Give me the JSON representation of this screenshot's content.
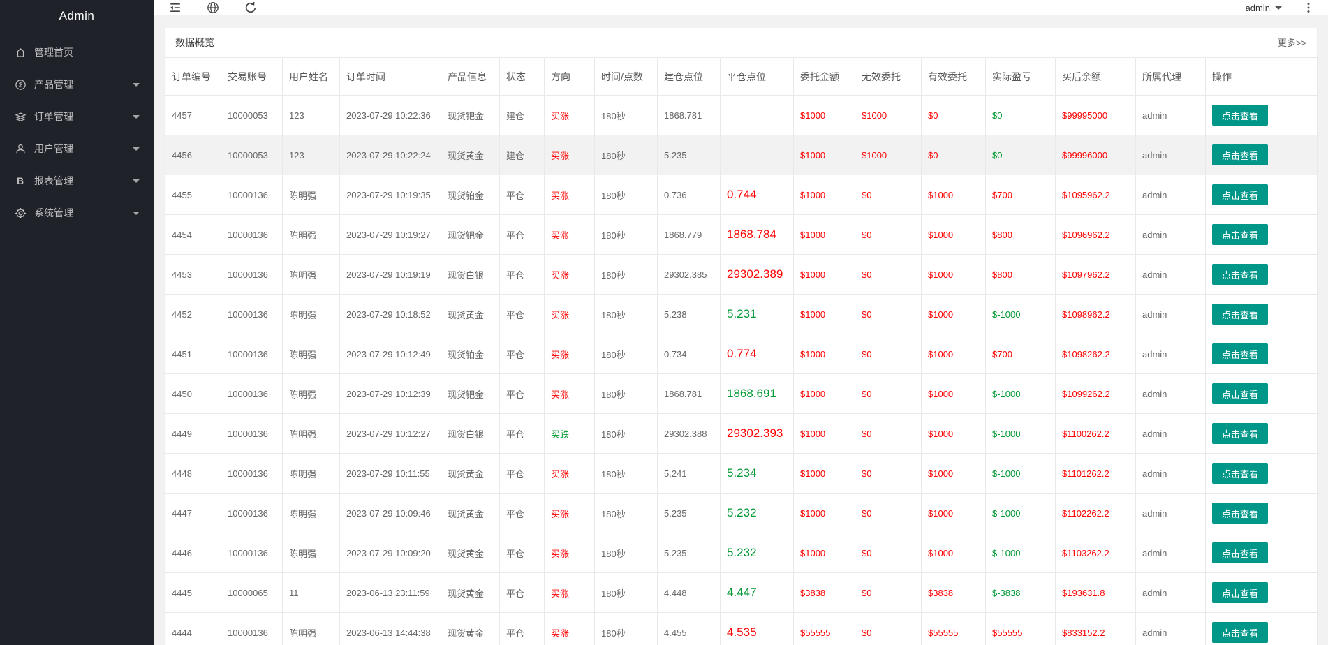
{
  "sidebar": {
    "logo": "Admin",
    "items": [
      {
        "id": "home",
        "icon": "home-icon",
        "label": "管理首页",
        "has_arrow": false
      },
      {
        "id": "product",
        "icon": "dollar-icon",
        "label": "产品管理",
        "has_arrow": true
      },
      {
        "id": "orders",
        "icon": "layers-icon",
        "label": "订单管理",
        "has_arrow": true
      },
      {
        "id": "users",
        "icon": "user-icon",
        "label": "用户管理",
        "has_arrow": true
      },
      {
        "id": "reports",
        "icon": "report-icon",
        "label": "报表管理",
        "has_arrow": true
      },
      {
        "id": "settings",
        "icon": "gear-icon",
        "label": "系统管理",
        "has_arrow": true
      }
    ]
  },
  "topbar": {
    "username": "admin"
  },
  "overview": {
    "title": "数据概览",
    "more": "更多>>"
  },
  "table": {
    "columns": [
      "订单编号",
      "交易账号",
      "用户姓名",
      "订单时间",
      "产品信息",
      "状态",
      "方向",
      "时间/点数",
      "建仓点位",
      "平仓点位",
      "委托金额",
      "无效委托",
      "有效委托",
      "实际盈亏",
      "买后余额",
      "所属代理",
      "操作"
    ],
    "action_label": "点击查看",
    "rows": [
      {
        "order_no": "4457",
        "account": "10000053",
        "username": "123",
        "time": "2023-07-29 10:22:36",
        "product": "现货钯金",
        "status": "建仓",
        "direction": "买涨",
        "direction_color": "red",
        "duration": "180秒",
        "open_point": "1868.781",
        "close_point": "",
        "close_color": "",
        "amount": "$1000",
        "invalid": "$1000",
        "valid": "$0",
        "profit": "$0",
        "profit_color": "green",
        "balance": "$99995000",
        "agent": "admin",
        "highlight": false
      },
      {
        "order_no": "4456",
        "account": "10000053",
        "username": "123",
        "time": "2023-07-29 10:22:24",
        "product": "现货黄金",
        "status": "建仓",
        "direction": "买涨",
        "direction_color": "red",
        "duration": "180秒",
        "open_point": "5.235",
        "close_point": "",
        "close_color": "",
        "amount": "$1000",
        "invalid": "$1000",
        "valid": "$0",
        "profit": "$0",
        "profit_color": "green",
        "balance": "$99996000",
        "agent": "admin",
        "highlight": true
      },
      {
        "order_no": "4455",
        "account": "10000136",
        "username": "陈明强",
        "time": "2023-07-29 10:19:35",
        "product": "现货铂金",
        "status": "平仓",
        "direction": "买涨",
        "direction_color": "red",
        "duration": "180秒",
        "open_point": "0.736",
        "close_point": "0.744",
        "close_color": "red",
        "amount": "$1000",
        "invalid": "$0",
        "valid": "$1000",
        "profit": "$700",
        "profit_color": "red",
        "balance": "$1095962.2",
        "agent": "admin",
        "highlight": false
      },
      {
        "order_no": "4454",
        "account": "10000136",
        "username": "陈明强",
        "time": "2023-07-29 10:19:27",
        "product": "现货钯金",
        "status": "平仓",
        "direction": "买涨",
        "direction_color": "red",
        "duration": "180秒",
        "open_point": "1868.779",
        "close_point": "1868.784",
        "close_color": "red",
        "amount": "$1000",
        "invalid": "$0",
        "valid": "$1000",
        "profit": "$800",
        "profit_color": "red",
        "balance": "$1096962.2",
        "agent": "admin",
        "highlight": false
      },
      {
        "order_no": "4453",
        "account": "10000136",
        "username": "陈明强",
        "time": "2023-07-29 10:19:19",
        "product": "现货白银",
        "status": "平仓",
        "direction": "买涨",
        "direction_color": "red",
        "duration": "180秒",
        "open_point": "29302.385",
        "close_point": "29302.389",
        "close_color": "red",
        "amount": "$1000",
        "invalid": "$0",
        "valid": "$1000",
        "profit": "$800",
        "profit_color": "red",
        "balance": "$1097962.2",
        "agent": "admin",
        "highlight": false
      },
      {
        "order_no": "4452",
        "account": "10000136",
        "username": "陈明强",
        "time": "2023-07-29 10:18:52",
        "product": "现货黄金",
        "status": "平仓",
        "direction": "买涨",
        "direction_color": "red",
        "duration": "180秒",
        "open_point": "5.238",
        "close_point": "5.231",
        "close_color": "green",
        "amount": "$1000",
        "invalid": "$0",
        "valid": "$1000",
        "profit": "$-1000",
        "profit_color": "green",
        "balance": "$1098962.2",
        "agent": "admin",
        "highlight": false
      },
      {
        "order_no": "4451",
        "account": "10000136",
        "username": "陈明强",
        "time": "2023-07-29 10:12:49",
        "product": "现货铂金",
        "status": "平仓",
        "direction": "买涨",
        "direction_color": "red",
        "duration": "180秒",
        "open_point": "0.734",
        "close_point": "0.774",
        "close_color": "red",
        "amount": "$1000",
        "invalid": "$0",
        "valid": "$1000",
        "profit": "$700",
        "profit_color": "red",
        "balance": "$1098262.2",
        "agent": "admin",
        "highlight": false
      },
      {
        "order_no": "4450",
        "account": "10000136",
        "username": "陈明强",
        "time": "2023-07-29 10:12:39",
        "product": "现货钯金",
        "status": "平仓",
        "direction": "买涨",
        "direction_color": "red",
        "duration": "180秒",
        "open_point": "1868.781",
        "close_point": "1868.691",
        "close_color": "green",
        "amount": "$1000",
        "invalid": "$0",
        "valid": "$1000",
        "profit": "$-1000",
        "profit_color": "green",
        "balance": "$1099262.2",
        "agent": "admin",
        "highlight": false
      },
      {
        "order_no": "4449",
        "account": "10000136",
        "username": "陈明强",
        "time": "2023-07-29 10:12:27",
        "product": "现货白银",
        "status": "平仓",
        "direction": "买跌",
        "direction_color": "green",
        "duration": "180秒",
        "open_point": "29302.388",
        "close_point": "29302.393",
        "close_color": "red",
        "amount": "$1000",
        "invalid": "$0",
        "valid": "$1000",
        "profit": "$-1000",
        "profit_color": "green",
        "balance": "$1100262.2",
        "agent": "admin",
        "highlight": false
      },
      {
        "order_no": "4448",
        "account": "10000136",
        "username": "陈明强",
        "time": "2023-07-29 10:11:55",
        "product": "现货黄金",
        "status": "平仓",
        "direction": "买涨",
        "direction_color": "red",
        "duration": "180秒",
        "open_point": "5.241",
        "close_point": "5.234",
        "close_color": "green",
        "amount": "$1000",
        "invalid": "$0",
        "valid": "$1000",
        "profit": "$-1000",
        "profit_color": "green",
        "balance": "$1101262.2",
        "agent": "admin",
        "highlight": false
      },
      {
        "order_no": "4447",
        "account": "10000136",
        "username": "陈明强",
        "time": "2023-07-29 10:09:46",
        "product": "现货黄金",
        "status": "平仓",
        "direction": "买涨",
        "direction_color": "red",
        "duration": "180秒",
        "open_point": "5.235",
        "close_point": "5.232",
        "close_color": "green",
        "amount": "$1000",
        "invalid": "$0",
        "valid": "$1000",
        "profit": "$-1000",
        "profit_color": "green",
        "balance": "$1102262.2",
        "agent": "admin",
        "highlight": false
      },
      {
        "order_no": "4446",
        "account": "10000136",
        "username": "陈明强",
        "time": "2023-07-29 10:09:20",
        "product": "现货黄金",
        "status": "平仓",
        "direction": "买涨",
        "direction_color": "red",
        "duration": "180秒",
        "open_point": "5.235",
        "close_point": "5.232",
        "close_color": "green",
        "amount": "$1000",
        "invalid": "$0",
        "valid": "$1000",
        "profit": "$-1000",
        "profit_color": "green",
        "balance": "$1103262.2",
        "agent": "admin",
        "highlight": false
      },
      {
        "order_no": "4445",
        "account": "10000065",
        "username": "11",
        "time": "2023-06-13 23:11:59",
        "product": "现货黄金",
        "status": "平仓",
        "direction": "买涨",
        "direction_color": "red",
        "duration": "180秒",
        "open_point": "4.448",
        "close_point": "4.447",
        "close_color": "green",
        "amount": "$3838",
        "invalid": "$0",
        "valid": "$3838",
        "profit": "$-3838",
        "profit_color": "green",
        "balance": "$193631.8",
        "agent": "admin",
        "highlight": false
      },
      {
        "order_no": "4444",
        "account": "10000136",
        "username": "陈明强",
        "time": "2023-06-13 14:44:38",
        "product": "现货黄金",
        "status": "平仓",
        "direction": "买涨",
        "direction_color": "red",
        "duration": "180秒",
        "open_point": "4.455",
        "close_point": "4.535",
        "close_color": "red",
        "amount": "$55555",
        "invalid": "$0",
        "valid": "$55555",
        "profit": "$55555",
        "profit_color": "red",
        "balance": "$833152.2",
        "agent": "admin",
        "highlight": false
      }
    ]
  },
  "colors": {
    "red": "#ff0000",
    "green": "#009933",
    "accent": "#009688",
    "sidebar_bg": "#20222a"
  }
}
